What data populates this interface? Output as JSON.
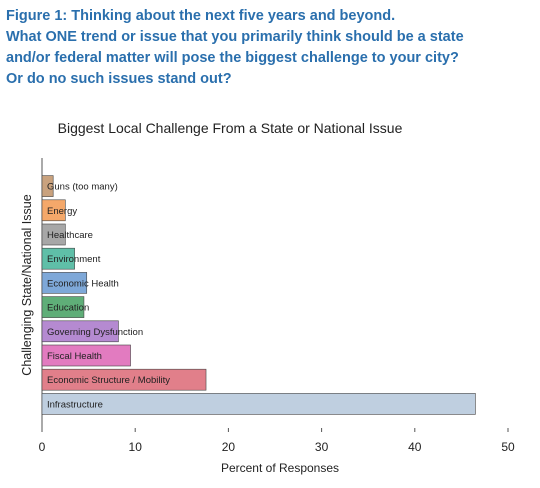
{
  "figure": {
    "heading_lines": [
      "Figure 1: Thinking about the next five years and beyond.",
      "What ONE trend or issue that you primarily think should be a state",
      "and/or federal matter will pose the biggest challenge to your city?",
      "Or do no such issues stand out?"
    ]
  },
  "chart_data": {
    "type": "bar",
    "orientation": "horizontal",
    "title": "Biggest Local Challenge From a State or National Issue",
    "xlabel": "Percent of Responses",
    "ylabel": "Challenging State/National Issue",
    "xlim": [
      0,
      50
    ],
    "xticks": [
      0,
      10,
      20,
      30,
      40,
      50
    ],
    "grid": false,
    "categories": [
      "Guns (too many)",
      "Energy",
      "Healthcare",
      "Environment",
      "Economic Health",
      "Education",
      "Governing Dysfunction",
      "Fiscal Health",
      "Economic Structure / Mobility",
      "Infrastructure"
    ],
    "values": [
      1.2,
      2.5,
      2.5,
      3.5,
      4.8,
      4.5,
      8.2,
      9.5,
      17.6,
      46.5
    ],
    "colors": [
      "#c9a27e",
      "#f4a86a",
      "#a7a7a7",
      "#5fbfa8",
      "#7ea8d8",
      "#5fae78",
      "#b58ad1",
      "#e27bc0",
      "#e17f8a",
      "#bfcfe0"
    ]
  }
}
